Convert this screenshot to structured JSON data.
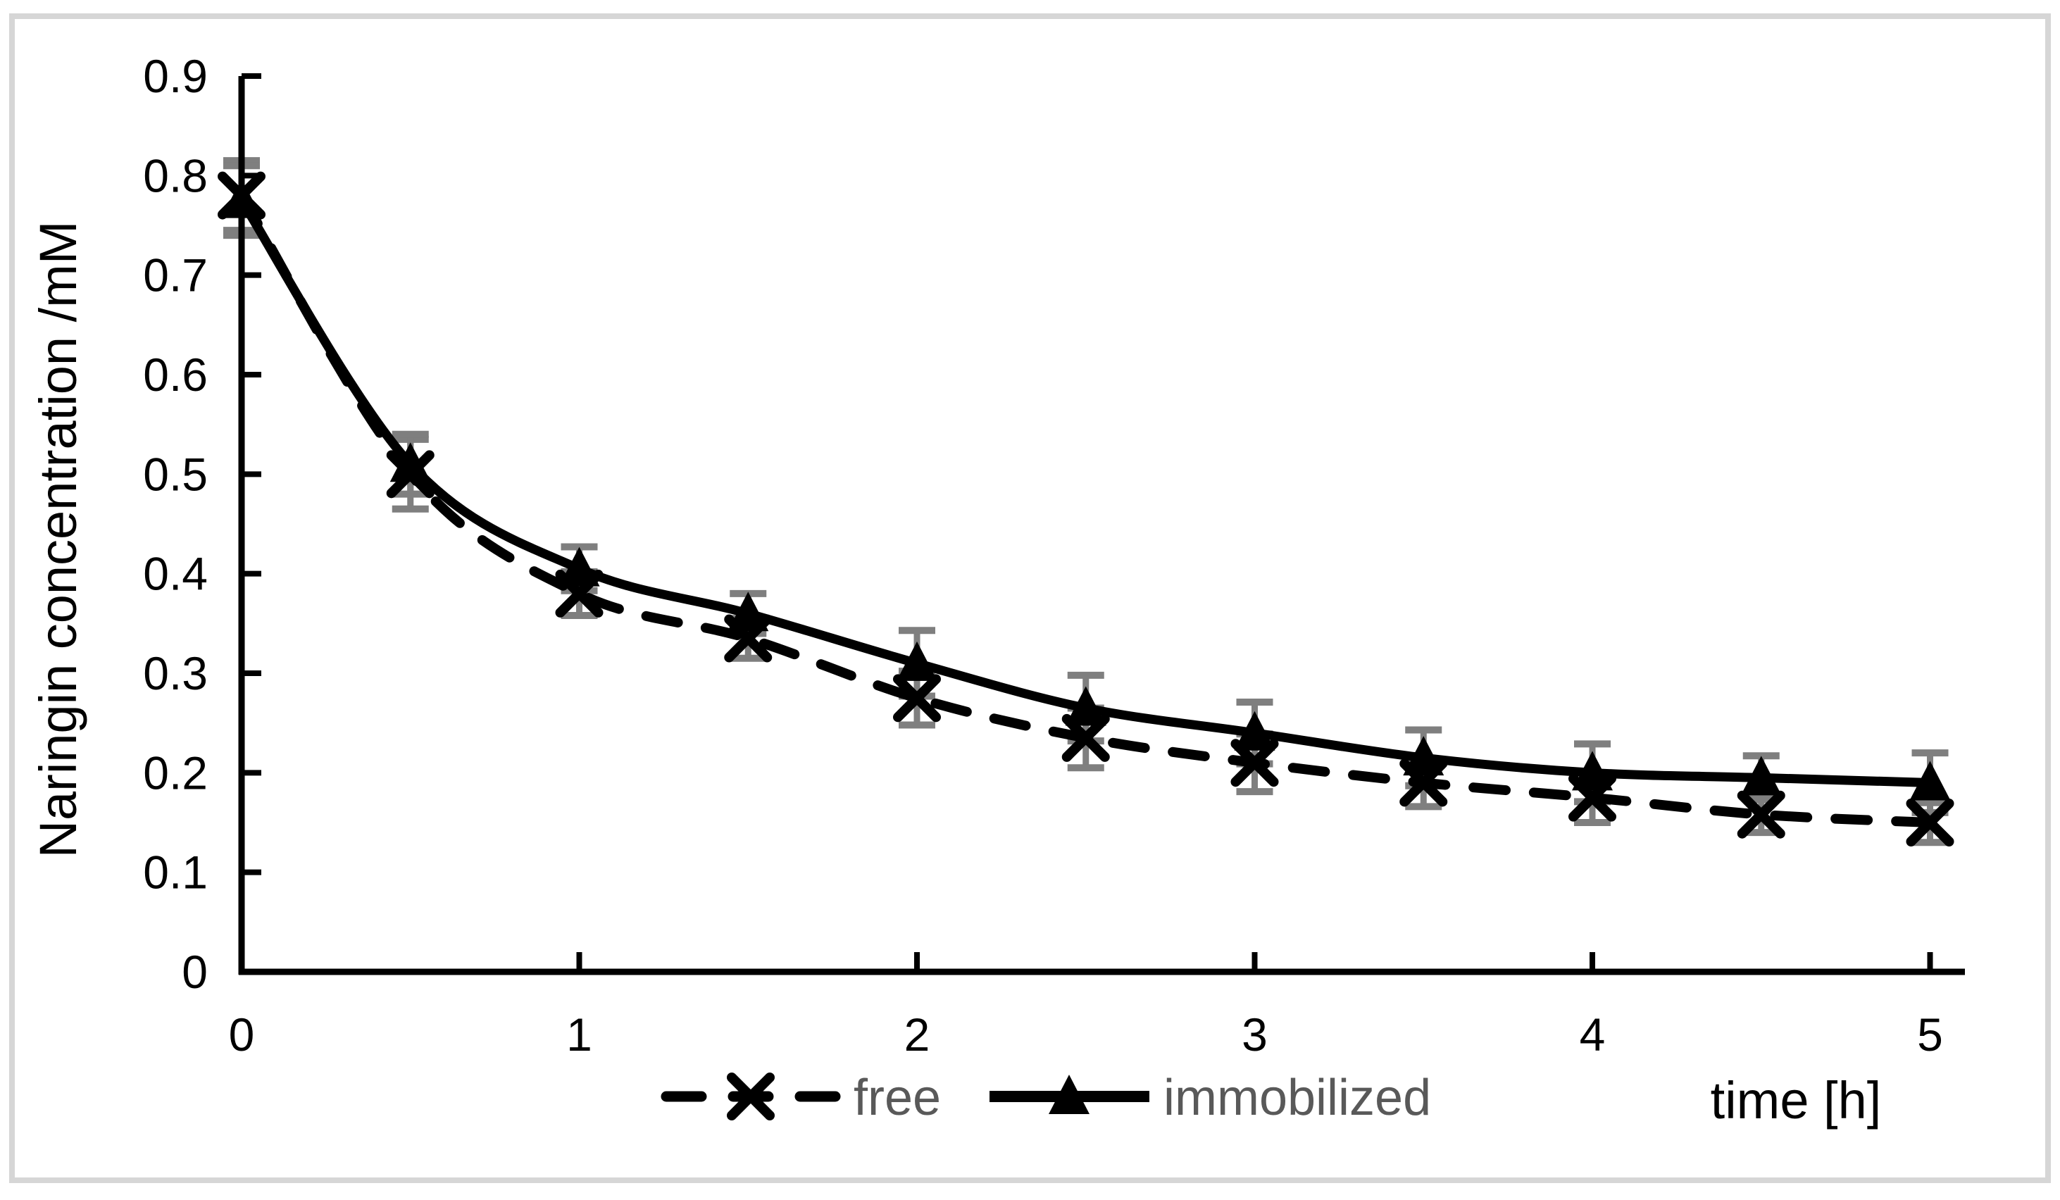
{
  "colors": {
    "series": "#000000",
    "error_bars": "#7f7f7f",
    "legend_text": "#595959",
    "axis_text": "#000000",
    "frame": "#d6d6d6",
    "background": "#ffffff"
  },
  "axes": {
    "x": {
      "title": "time [h]",
      "tick_labels": [
        "0",
        "1",
        "2",
        "3",
        "4",
        "5"
      ],
      "tick_values": [
        0,
        1,
        2,
        3,
        4,
        5
      ],
      "range": [
        0,
        5
      ]
    },
    "y": {
      "title": "Naringin concentration /mM",
      "tick_labels": [
        "0.9",
        "0.8",
        "0.7",
        "0.6",
        "0.5",
        "0.4",
        "0.3",
        "0.2",
        "0.1",
        "0"
      ],
      "tick_values": [
        0.9,
        0.8,
        0.7,
        0.6,
        0.5,
        0.4,
        0.3,
        0.2,
        0.1,
        0
      ],
      "range": [
        0,
        0.9
      ]
    }
  },
  "chart_data": {
    "type": "line",
    "x": [
      0,
      0.5,
      1,
      1.5,
      2,
      2.5,
      3,
      3.5,
      4,
      4.5,
      5
    ],
    "series": [
      {
        "name": "free",
        "line_style": "dashed",
        "marker": "x",
        "values": [
          0.78,
          0.5,
          0.38,
          0.335,
          0.275,
          0.235,
          0.21,
          0.19,
          0.175,
          0.158,
          0.15
        ],
        "errors": [
          0.035,
          0.035,
          0.022,
          0.02,
          0.027,
          0.03,
          0.029,
          0.024,
          0.025,
          0.018,
          0.02
        ]
      },
      {
        "name": "immobilized",
        "line_style": "solid",
        "marker": "triangle",
        "values": [
          0.775,
          0.51,
          0.405,
          0.36,
          0.31,
          0.265,
          0.24,
          0.215,
          0.2,
          0.195,
          0.19
        ],
        "errors": [
          0.035,
          0.03,
          0.022,
          0.02,
          0.033,
          0.033,
          0.031,
          0.028,
          0.029,
          0.022,
          0.03
        ]
      }
    ],
    "title": "",
    "xlabel": "time [h]",
    "ylabel": "Naringin concentration /mM",
    "xlim": [
      0,
      5.15
    ],
    "ylim": [
      0,
      0.9
    ],
    "grid": false,
    "error_bars": true,
    "legend_position": "bottom-center"
  }
}
